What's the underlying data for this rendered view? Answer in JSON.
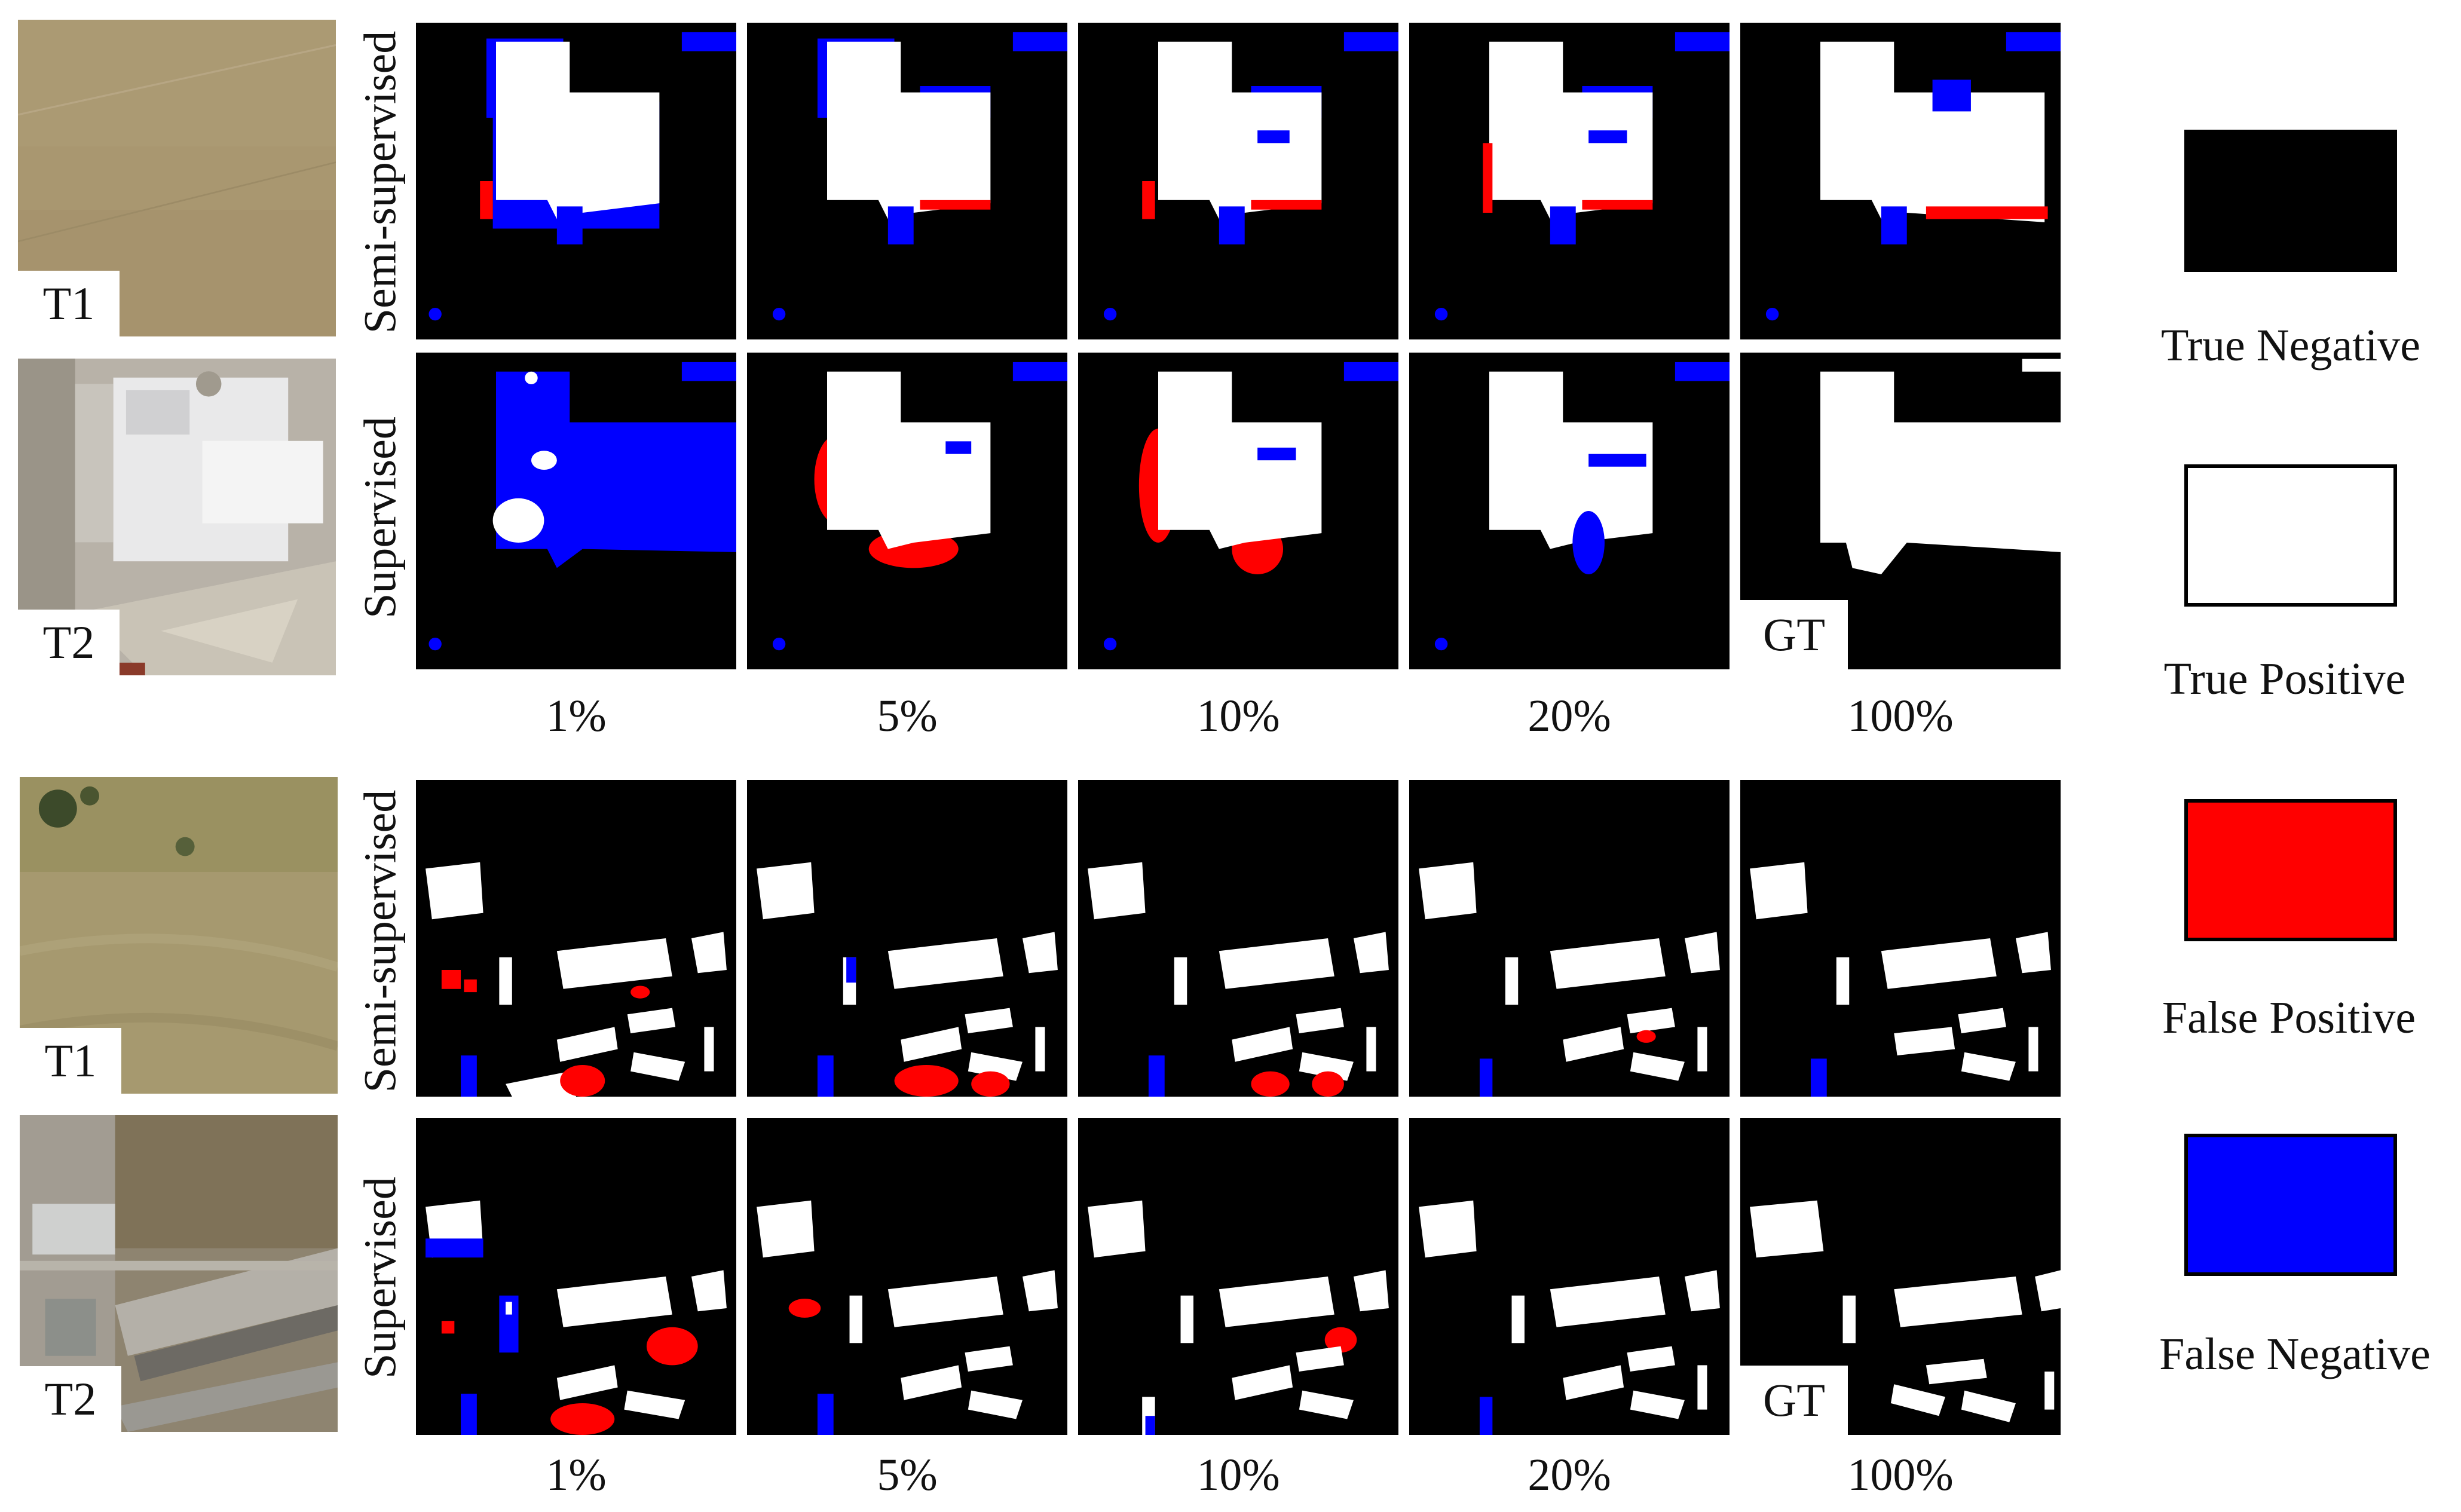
{
  "image_tags": {
    "t1": "T1",
    "t2": "T2"
  },
  "rows": {
    "semi": "Semi-supervised",
    "supervised": "Supervised"
  },
  "gt_tag": "GT",
  "percentages": [
    "1%",
    "5%",
    "10%",
    "20%",
    "100%"
  ],
  "legend": [
    {
      "label": "True Negative",
      "color": "#000000"
    },
    {
      "label": "True Positive",
      "color": "#ffffff"
    },
    {
      "label": "False Positive",
      "color": "#ff0000"
    },
    {
      "label": "False Negative",
      "color": "#0000ff"
    }
  ],
  "colors": {
    "tp": "#ffffff",
    "fp": "#ff0000",
    "fn": "#0000ff",
    "tn": "#000000"
  }
}
